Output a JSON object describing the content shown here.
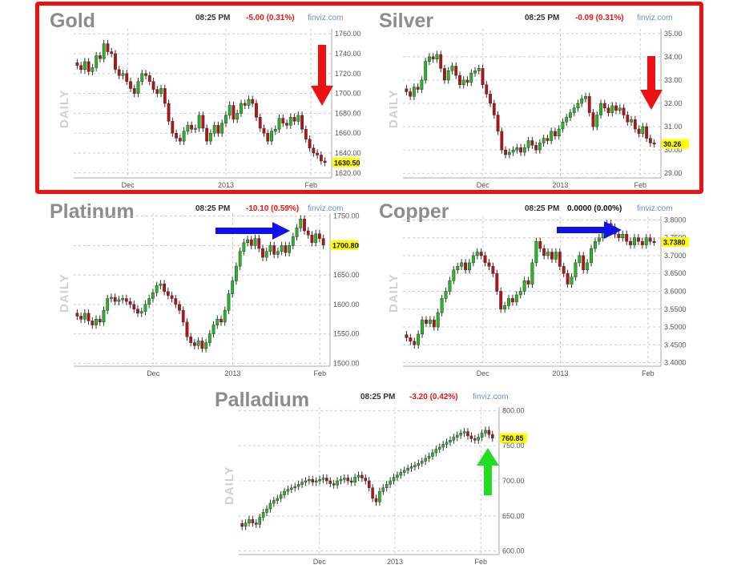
{
  "colors": {
    "up": "#22bb22",
    "down": "#bb1111",
    "grid": "#cccccc",
    "highlight": "#ee1111",
    "red_arrow": "#ee1111",
    "blue_arrow": "#1111ee",
    "green_arrow": "#22dd22",
    "title": "#8c8c8c",
    "last_price_bg": "#ffff00"
  },
  "chart_data": [
    {
      "type": "candlestick",
      "title": "Gold",
      "time": "08:25 PM",
      "change": "-5.00 (0.31%)",
      "change_color": "#ee1111",
      "source": "finviz.com",
      "ylabel": "DAILY",
      "x_ticks": [
        "Dec",
        "2013",
        "Feb"
      ],
      "y_ticks": [
        1620.0,
        1640.0,
        1660.0,
        1680.0,
        1700.0,
        1720.0,
        1740.0,
        1760.0
      ],
      "y_tick_labels": [
        "1620.00",
        "1640.00",
        "1660.00",
        "1680.00",
        "1700.00",
        "1720.00",
        "1740.00",
        "1760.00"
      ],
      "ylim": [
        1615,
        1765
      ],
      "last_price": "1630.50",
      "closes": [
        1728,
        1724,
        1732,
        1722,
        1726,
        1738,
        1735,
        1750,
        1742,
        1740,
        1724,
        1718,
        1720,
        1712,
        1705,
        1700,
        1712,
        1720,
        1718,
        1712,
        1704,
        1700,
        1705,
        1690,
        1672,
        1660,
        1655,
        1652,
        1662,
        1668,
        1664,
        1665,
        1678,
        1665,
        1652,
        1660,
        1668,
        1660,
        1670,
        1678,
        1688,
        1674,
        1680,
        1690,
        1688,
        1694,
        1690,
        1676,
        1665,
        1660,
        1652,
        1662,
        1664,
        1675,
        1670,
        1668,
        1676,
        1672,
        1678,
        1664,
        1654,
        1645,
        1640,
        1638,
        1632,
        1630.5
      ],
      "annotation": "red-down-arrow"
    },
    {
      "type": "candlestick",
      "title": "Silver",
      "time": "08:25 PM",
      "change": "-0.09 (0.31%)",
      "change_color": "#ee1111",
      "source": "finviz.com",
      "ylabel": "DAILY",
      "x_ticks": [
        "Dec",
        "2013",
        "Feb"
      ],
      "y_ticks": [
        29.0,
        30.0,
        31.0,
        32.0,
        33.0,
        34.0,
        35.0
      ],
      "y_tick_labels": [
        "29.00",
        "30.00",
        "31.00",
        "32.00",
        "33.00",
        "34.00",
        "35.00"
      ],
      "ylim": [
        28.8,
        35.2
      ],
      "last_price": "30.26",
      "closes": [
        32.5,
        32.3,
        32.7,
        32.6,
        33.0,
        33.8,
        34.0,
        33.9,
        34.1,
        33.5,
        33.0,
        33.4,
        33.6,
        33.2,
        32.8,
        33.0,
        32.9,
        33.3,
        33.4,
        33.5,
        32.8,
        32.4,
        32.0,
        31.5,
        30.8,
        30.0,
        29.8,
        29.9,
        30.0,
        30.1,
        29.9,
        30.1,
        30.4,
        30.2,
        30.0,
        30.3,
        30.5,
        30.4,
        30.8,
        30.6,
        30.9,
        31.2,
        31.4,
        31.6,
        31.8,
        32.0,
        32.2,
        32.3,
        31.6,
        31.0,
        31.5,
        32.0,
        31.8,
        31.6,
        31.9,
        31.7,
        31.8,
        31.5,
        31.2,
        31.3,
        30.9,
        30.7,
        31.0,
        30.5,
        30.3,
        30.26
      ],
      "annotation": "red-down-arrow"
    },
    {
      "type": "candlestick",
      "title": "Platinum",
      "time": "08:25 PM",
      "change": "-10.10 (0.59%)",
      "change_color": "#ee1111",
      "source": "finviz.com",
      "ylabel": "DAILY",
      "x_ticks": [
        "Dec",
        "2013",
        "Feb"
      ],
      "y_ticks": [
        1500.0,
        1550.0,
        1600.0,
        1650.0,
        1700.0,
        1750.0
      ],
      "y_tick_labels": [
        "1500.00",
        "1550.00",
        "1600.00",
        "1650.00",
        "1700.00",
        "1750.00"
      ],
      "ylim": [
        1495,
        1755
      ],
      "last_price": "1700.80",
      "closes": [
        1580,
        1575,
        1585,
        1572,
        1565,
        1575,
        1570,
        1590,
        1610,
        1612,
        1605,
        1608,
        1610,
        1605,
        1600,
        1592,
        1585,
        1588,
        1600,
        1610,
        1620,
        1632,
        1635,
        1622,
        1615,
        1610,
        1600,
        1590,
        1570,
        1545,
        1535,
        1530,
        1538,
        1525,
        1535,
        1550,
        1565,
        1575,
        1570,
        1590,
        1618,
        1640,
        1665,
        1690,
        1705,
        1710,
        1700,
        1712,
        1695,
        1680,
        1690,
        1700,
        1685,
        1690,
        1700,
        1688,
        1700,
        1715,
        1730,
        1745,
        1725,
        1718,
        1705,
        1720,
        1712,
        1700.8
      ],
      "annotation": "blue-right-arrow"
    },
    {
      "type": "candlestick",
      "title": "Copper",
      "time": "08:25 PM",
      "change": "0.0000 (0.00%)",
      "change_color": "#111111",
      "source": "finviz.com",
      "ylabel": "DAILY",
      "x_ticks": [
        "Dec",
        "2013",
        "Feb"
      ],
      "y_ticks": [
        3.4,
        3.45,
        3.5,
        3.55,
        3.6,
        3.65,
        3.7,
        3.75,
        3.8
      ],
      "y_tick_labels": [
        "3.4000",
        "3.4500",
        "3.5000",
        "3.5500",
        "3.6000",
        "3.6500",
        "3.7000",
        "3.7500",
        "3.8000"
      ],
      "ylim": [
        3.39,
        3.81
      ],
      "last_price": "3.7380",
      "closes": [
        3.47,
        3.46,
        3.45,
        3.48,
        3.52,
        3.51,
        3.52,
        3.5,
        3.54,
        3.58,
        3.6,
        3.63,
        3.66,
        3.67,
        3.68,
        3.66,
        3.68,
        3.7,
        3.71,
        3.7,
        3.68,
        3.67,
        3.65,
        3.6,
        3.55,
        3.56,
        3.58,
        3.57,
        3.59,
        3.6,
        3.63,
        3.62,
        3.68,
        3.74,
        3.72,
        3.7,
        3.71,
        3.69,
        3.71,
        3.67,
        3.65,
        3.62,
        3.64,
        3.68,
        3.7,
        3.66,
        3.68,
        3.72,
        3.74,
        3.75,
        3.77,
        3.79,
        3.78,
        3.76,
        3.75,
        3.76,
        3.74,
        3.73,
        3.75,
        3.74,
        3.73,
        3.75,
        3.74,
        3.738
      ],
      "annotation": "blue-right-arrow"
    },
    {
      "type": "candlestick",
      "title": "Palladium",
      "time": "08:25 PM",
      "change": "-3.20 (0.42%)",
      "change_color": "#ee1111",
      "source": "finviz.com",
      "ylabel": "DAILY",
      "x_ticks": [
        "Dec",
        "2013",
        "Feb"
      ],
      "y_ticks": [
        600.0,
        650.0,
        700.0,
        750.0,
        800.0
      ],
      "y_tick_labels": [
        "600.00",
        "650.00",
        "700.00",
        "750.00",
        "800.00"
      ],
      "ylim": [
        595,
        805
      ],
      "last_price": "760.85",
      "closes": [
        635,
        640,
        645,
        640,
        638,
        648,
        655,
        660,
        668,
        672,
        675,
        680,
        685,
        688,
        690,
        692,
        695,
        698,
        700,
        702,
        698,
        700,
        702,
        704,
        700,
        696,
        694,
        700,
        702,
        704,
        700,
        698,
        705,
        708,
        704,
        700,
        690,
        675,
        670,
        685,
        690,
        695,
        700,
        705,
        708,
        712,
        715,
        718,
        720,
        722,
        725,
        728,
        732,
        735,
        740,
        745,
        748,
        752,
        755,
        758,
        762,
        765,
        768,
        770,
        764,
        760,
        758,
        762,
        768,
        772,
        766,
        760.85
      ],
      "annotation": "green-up-arrow"
    }
  ]
}
